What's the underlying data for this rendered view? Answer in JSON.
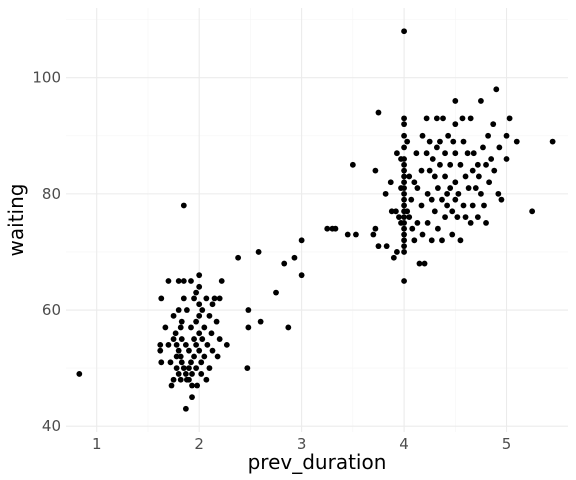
{
  "chart_data": {
    "type": "scatter",
    "xlabel": "prev_duration",
    "ylabel": "waiting",
    "xlim": [
      0.7,
      5.6
    ],
    "ylim": [
      39,
      112
    ],
    "xticks": [
      1,
      2,
      3,
      4,
      5
    ],
    "yticks": [
      40,
      60,
      80,
      100
    ],
    "xtick_labels": [
      "1",
      "2",
      "3",
      "4",
      "5"
    ],
    "ytick_labels": [
      "40",
      "60",
      "80",
      "100"
    ],
    "x_minor": [
      1.5,
      2.5,
      3.5,
      4.5
    ],
    "y_minor": [
      50,
      70,
      90,
      110
    ],
    "grid": true,
    "point_color": "#000000",
    "points": [
      [
        0.83,
        49
      ],
      [
        1.85,
        78
      ],
      [
        1.87,
        43
      ],
      [
        1.93,
        45
      ],
      [
        1.63,
        62
      ],
      [
        1.62,
        54
      ],
      [
        1.62,
        53
      ],
      [
        1.63,
        51
      ],
      [
        1.67,
        57
      ],
      [
        1.7,
        65
      ],
      [
        1.7,
        54
      ],
      [
        1.72,
        51
      ],
      [
        1.73,
        47
      ],
      [
        1.75,
        59
      ],
      [
        1.75,
        55
      ],
      [
        1.77,
        56
      ],
      [
        1.78,
        54
      ],
      [
        1.78,
        52
      ],
      [
        1.78,
        50
      ],
      [
        1.8,
        65
      ],
      [
        1.8,
        60
      ],
      [
        1.8,
        53
      ],
      [
        1.8,
        49
      ],
      [
        1.82,
        57
      ],
      [
        1.82,
        48
      ],
      [
        1.83,
        58
      ],
      [
        1.83,
        55
      ],
      [
        1.83,
        51
      ],
      [
        1.85,
        65
      ],
      [
        1.85,
        62
      ],
      [
        1.85,
        50
      ],
      [
        1.87,
        54
      ],
      [
        1.87,
        49
      ],
      [
        1.88,
        48
      ],
      [
        1.88,
        60
      ],
      [
        1.9,
        53
      ],
      [
        1.9,
        50
      ],
      [
        1.9,
        48
      ],
      [
        1.92,
        65
      ],
      [
        1.92,
        57
      ],
      [
        1.92,
        51
      ],
      [
        1.93,
        49
      ],
      [
        1.93,
        47
      ],
      [
        1.95,
        62
      ],
      [
        1.95,
        55
      ],
      [
        1.95,
        52
      ],
      [
        1.97,
        58
      ],
      [
        1.97,
        54
      ],
      [
        1.97,
        50
      ],
      [
        1.98,
        47
      ],
      [
        2.0,
        66
      ],
      [
        2.0,
        64
      ],
      [
        2.0,
        61
      ],
      [
        2.0,
        59
      ],
      [
        2.0,
        56
      ],
      [
        2.0,
        53
      ],
      [
        2.02,
        51
      ],
      [
        2.02,
        49
      ],
      [
        2.03,
        60
      ],
      [
        2.03,
        55
      ],
      [
        2.05,
        57
      ],
      [
        2.05,
        52
      ],
      [
        2.07,
        62
      ],
      [
        2.07,
        48
      ],
      [
        2.08,
        54
      ],
      [
        2.1,
        59
      ],
      [
        2.1,
        50
      ],
      [
        2.12,
        56
      ],
      [
        2.13,
        61
      ],
      [
        2.13,
        53
      ],
      [
        2.15,
        62
      ],
      [
        2.17,
        58
      ],
      [
        2.18,
        52
      ],
      [
        2.2,
        62
      ],
      [
        2.2,
        55
      ],
      [
        2.22,
        65
      ],
      [
        2.27,
        54
      ],
      [
        1.97,
        63
      ],
      [
        1.82,
        52
      ],
      [
        1.75,
        48
      ],
      [
        2.38,
        69
      ],
      [
        2.47,
        50
      ],
      [
        2.48,
        60
      ],
      [
        2.48,
        57
      ],
      [
        2.58,
        70
      ],
      [
        2.6,
        58
      ],
      [
        2.75,
        63
      ],
      [
        2.83,
        68
      ],
      [
        2.87,
        57
      ],
      [
        2.93,
        69
      ],
      [
        3.0,
        72
      ],
      [
        3.0,
        66
      ],
      [
        3.25,
        74
      ],
      [
        3.3,
        74
      ],
      [
        3.33,
        74
      ],
      [
        3.45,
        73
      ],
      [
        3.5,
        85
      ],
      [
        3.53,
        73
      ],
      [
        3.7,
        73
      ],
      [
        3.72,
        84
      ],
      [
        3.72,
        74
      ],
      [
        3.75,
        94
      ],
      [
        3.75,
        71
      ],
      [
        3.82,
        80
      ],
      [
        3.83,
        71
      ],
      [
        3.87,
        82
      ],
      [
        3.88,
        77
      ],
      [
        3.9,
        69
      ],
      [
        3.92,
        77
      ],
      [
        3.93,
        87
      ],
      [
        3.93,
        70
      ],
      [
        3.95,
        76
      ],
      [
        3.97,
        86
      ],
      [
        3.97,
        81
      ],
      [
        3.97,
        75
      ],
      [
        4.0,
        108
      ],
      [
        4.0,
        93
      ],
      [
        4.0,
        92
      ],
      [
        4.0,
        90
      ],
      [
        4.0,
        88
      ],
      [
        4.0,
        86
      ],
      [
        4.0,
        85
      ],
      [
        4.0,
        84
      ],
      [
        4.0,
        83
      ],
      [
        4.0,
        82
      ],
      [
        4.0,
        81
      ],
      [
        4.0,
        80
      ],
      [
        4.0,
        79
      ],
      [
        4.0,
        78
      ],
      [
        4.0,
        77
      ],
      [
        4.0,
        76
      ],
      [
        4.0,
        75
      ],
      [
        4.0,
        74
      ],
      [
        4.0,
        73
      ],
      [
        4.0,
        72
      ],
      [
        4.0,
        71
      ],
      [
        4.0,
        70
      ],
      [
        4.0,
        65
      ],
      [
        4.03,
        89
      ],
      [
        4.03,
        77
      ],
      [
        4.05,
        83
      ],
      [
        4.05,
        76
      ],
      [
        4.07,
        79
      ],
      [
        4.08,
        74
      ],
      [
        4.1,
        82
      ],
      [
        4.1,
        72
      ],
      [
        4.12,
        87
      ],
      [
        4.13,
        81
      ],
      [
        4.13,
        75
      ],
      [
        4.15,
        68
      ],
      [
        4.17,
        84
      ],
      [
        4.17,
        78
      ],
      [
        4.18,
        90
      ],
      [
        4.18,
        73
      ],
      [
        4.2,
        68
      ],
      [
        4.22,
        93
      ],
      [
        4.22,
        87
      ],
      [
        4.23,
        80
      ],
      [
        4.23,
        75
      ],
      [
        4.25,
        89
      ],
      [
        4.25,
        84
      ],
      [
        4.27,
        79
      ],
      [
        4.27,
        72
      ],
      [
        4.28,
        86
      ],
      [
        4.3,
        83
      ],
      [
        4.3,
        77
      ],
      [
        4.32,
        93
      ],
      [
        4.32,
        88
      ],
      [
        4.33,
        81
      ],
      [
        4.33,
        74
      ],
      [
        4.35,
        89
      ],
      [
        4.35,
        85
      ],
      [
        4.37,
        79
      ],
      [
        4.37,
        72
      ],
      [
        4.38,
        93
      ],
      [
        4.4,
        87
      ],
      [
        4.4,
        83
      ],
      [
        4.4,
        76
      ],
      [
        4.42,
        80
      ],
      [
        4.42,
        78
      ],
      [
        4.43,
        90
      ],
      [
        4.45,
        85
      ],
      [
        4.45,
        81
      ],
      [
        4.47,
        77
      ],
      [
        4.47,
        73
      ],
      [
        4.48,
        89
      ],
      [
        4.5,
        96
      ],
      [
        4.5,
        92
      ],
      [
        4.5,
        87
      ],
      [
        4.5,
        82
      ],
      [
        4.5,
        79
      ],
      [
        4.52,
        76
      ],
      [
        4.53,
        80
      ],
      [
        4.55,
        85
      ],
      [
        4.55,
        72
      ],
      [
        4.57,
        93
      ],
      [
        4.58,
        89
      ],
      [
        4.58,
        78
      ],
      [
        4.6,
        83
      ],
      [
        4.6,
        76
      ],
      [
        4.62,
        87
      ],
      [
        4.63,
        81
      ],
      [
        4.65,
        93
      ],
      [
        4.65,
        75
      ],
      [
        4.67,
        84
      ],
      [
        4.67,
        78
      ],
      [
        4.68,
        87
      ],
      [
        4.7,
        81
      ],
      [
        4.72,
        85
      ],
      [
        4.72,
        76
      ],
      [
        4.73,
        83
      ],
      [
        4.75,
        96
      ],
      [
        4.75,
        80
      ],
      [
        4.77,
        88
      ],
      [
        4.78,
        78
      ],
      [
        4.8,
        85
      ],
      [
        4.8,
        75
      ],
      [
        4.82,
        90
      ],
      [
        4.83,
        82
      ],
      [
        4.85,
        86
      ],
      [
        4.87,
        92
      ],
      [
        4.88,
        84
      ],
      [
        4.9,
        98
      ],
      [
        4.92,
        80
      ],
      [
        4.93,
        88
      ],
      [
        4.95,
        79
      ],
      [
        5.0,
        90
      ],
      [
        5.0,
        86
      ],
      [
        5.03,
        93
      ],
      [
        5.1,
        89
      ],
      [
        5.25,
        77
      ],
      [
        5.45,
        89
      ]
    ]
  }
}
